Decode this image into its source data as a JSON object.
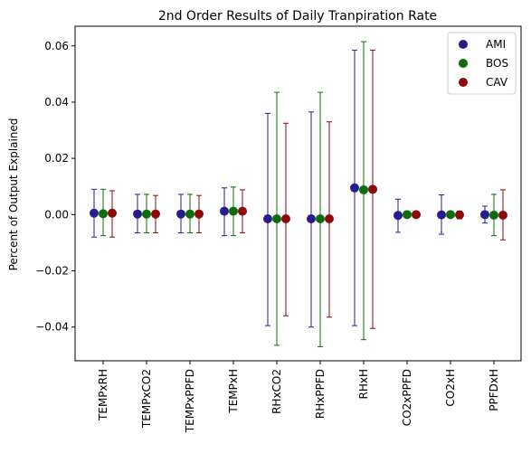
{
  "chart_data": {
    "type": "scatter",
    "title": "2nd Order Results of Daily Tranpiration Rate",
    "xlabel": "",
    "ylabel": "Percent of Output Explained",
    "ylim": [
      -0.052,
      0.067
    ],
    "yticks": [
      -0.04,
      -0.02,
      0.0,
      0.02,
      0.04,
      0.06
    ],
    "ytick_labels": [
      "−0.04",
      "−0.02",
      "0.00",
      "0.02",
      "0.04",
      "0.06"
    ],
    "categories": [
      "TEMPxRH",
      "TEMPxCO2",
      "TEMPxPPFD",
      "TEMPxH",
      "RHxCO2",
      "RHxPPFD",
      "RHxH",
      "CO2xPPFD",
      "CO2xH",
      "PPFDxH"
    ],
    "grid": false,
    "legend_position": "top-right",
    "series": [
      {
        "name": "AMI",
        "color": "#2a1a8c",
        "values": [
          0.0005,
          0.0002,
          0.0002,
          0.0012,
          -0.0015,
          -0.0015,
          0.0095,
          -0.0003,
          -0.0001,
          0.0
        ],
        "err_low": [
          -0.008,
          -0.0065,
          -0.0065,
          -0.0075,
          -0.0395,
          -0.04,
          -0.0395,
          -0.0063,
          -0.007,
          -0.003
        ],
        "err_high": [
          0.009,
          0.0072,
          0.0072,
          0.0095,
          0.036,
          0.0365,
          0.0585,
          0.0055,
          0.007,
          0.003
        ]
      },
      {
        "name": "BOS",
        "color": "#0b6e0b",
        "values": [
          0.0003,
          0.0002,
          0.0002,
          0.0012,
          -0.0015,
          -0.0015,
          0.0088,
          0.0,
          0.0,
          -0.0002
        ],
        "err_low": [
          -0.0075,
          -0.0065,
          -0.0065,
          -0.0075,
          -0.0465,
          -0.047,
          -0.0445,
          0.0,
          -0.0005,
          -0.0075
        ],
        "err_high": [
          0.009,
          0.0072,
          0.0072,
          0.0098,
          0.0435,
          0.0435,
          0.0615,
          0.0002,
          0.0005,
          0.0072
        ]
      },
      {
        "name": "CAV",
        "color": "#8b0a0a",
        "values": [
          0.0005,
          0.0002,
          0.0002,
          0.0012,
          -0.0015,
          -0.0015,
          0.009,
          0.0,
          -0.0001,
          -0.0002
        ],
        "err_low": [
          -0.008,
          -0.0065,
          -0.0065,
          -0.0065,
          -0.036,
          -0.0365,
          -0.0405,
          -0.0003,
          -0.0015,
          -0.009
        ],
        "err_high": [
          0.0085,
          0.0068,
          0.0068,
          0.0088,
          0.0325,
          0.033,
          0.0585,
          0.0003,
          0.0012,
          0.0088
        ]
      }
    ]
  }
}
